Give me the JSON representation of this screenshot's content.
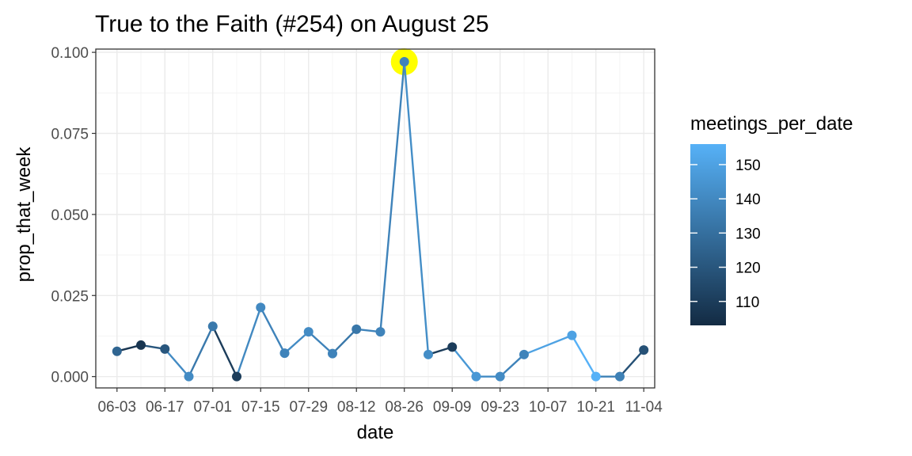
{
  "chart_data": {
    "type": "line",
    "title": "True to the Faith (#254) on August 25",
    "xlabel": "date",
    "ylabel": "prop_that_week",
    "x_ticks": [
      "06-03",
      "06-17",
      "07-01",
      "07-15",
      "07-29",
      "08-12",
      "08-26",
      "09-09",
      "09-23",
      "10-07",
      "10-21",
      "11-04"
    ],
    "y_ticks": [
      "0.000",
      "0.025",
      "0.050",
      "0.075",
      "0.100"
    ],
    "ylim": [
      -0.0035,
      0.101
    ],
    "xlim_days": [
      -6.2,
      157.2
    ],
    "grid": true,
    "legend": {
      "title": "meetings_per_date",
      "position": "right",
      "labels": [
        "110",
        "120",
        "130",
        "140",
        "150"
      ],
      "range": [
        103,
        156
      ],
      "color_low": "#132B43",
      "color_high": "#56B1F7"
    },
    "highlight": {
      "date": "08-26",
      "color": "#FFFF00"
    },
    "points": [
      {
        "date": "06-03",
        "y": 0.0078,
        "meetings": 126
      },
      {
        "date": "06-10",
        "y": 0.0097,
        "meetings": 107
      },
      {
        "date": "06-17",
        "y": 0.0085,
        "meetings": 120
      },
      {
        "date": "06-24",
        "y": 0.0,
        "meetings": 141
      },
      {
        "date": "07-01",
        "y": 0.0155,
        "meetings": 134
      },
      {
        "date": "07-08",
        "y": 0.0,
        "meetings": 110
      },
      {
        "date": "07-15",
        "y": 0.0213,
        "meetings": 140
      },
      {
        "date": "07-22",
        "y": 0.0072,
        "meetings": 138
      },
      {
        "date": "07-29",
        "y": 0.0138,
        "meetings": 141
      },
      {
        "date": "08-05",
        "y": 0.0071,
        "meetings": 138
      },
      {
        "date": "08-12",
        "y": 0.0146,
        "meetings": 133
      },
      {
        "date": "08-19",
        "y": 0.0138,
        "meetings": 138
      },
      {
        "date": "08-26",
        "y": 0.0971,
        "meetings": 138
      },
      {
        "date": "09-02",
        "y": 0.0068,
        "meetings": 142
      },
      {
        "date": "09-09",
        "y": 0.0091,
        "meetings": 110
      },
      {
        "date": "09-16",
        "y": 0.0,
        "meetings": 146
      },
      {
        "date": "09-23",
        "y": 0.0,
        "meetings": 141
      },
      {
        "date": "09-30",
        "y": 0.0068,
        "meetings": 138
      },
      {
        "date": "10-14",
        "y": 0.0127,
        "meetings": 150
      },
      {
        "date": "10-21",
        "y": 0.0,
        "meetings": 156
      },
      {
        "date": "10-28",
        "y": 0.0,
        "meetings": 137
      },
      {
        "date": "11-04",
        "y": 0.0082,
        "meetings": 118
      }
    ]
  }
}
